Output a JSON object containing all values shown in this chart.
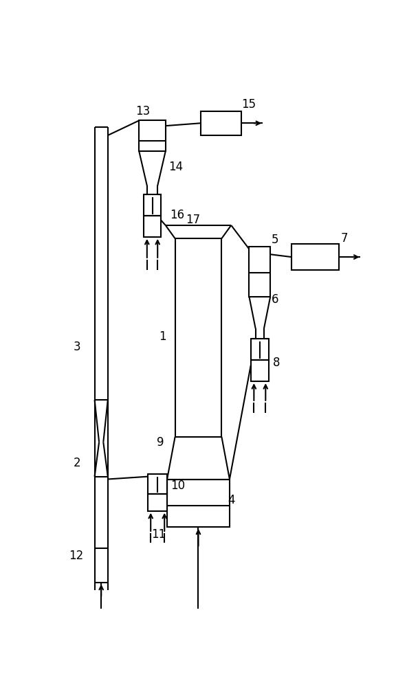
{
  "bg_color": "#ffffff",
  "line_color": "#000000",
  "lw": 1.5,
  "fig_w": 6.08,
  "fig_h": 10.0
}
